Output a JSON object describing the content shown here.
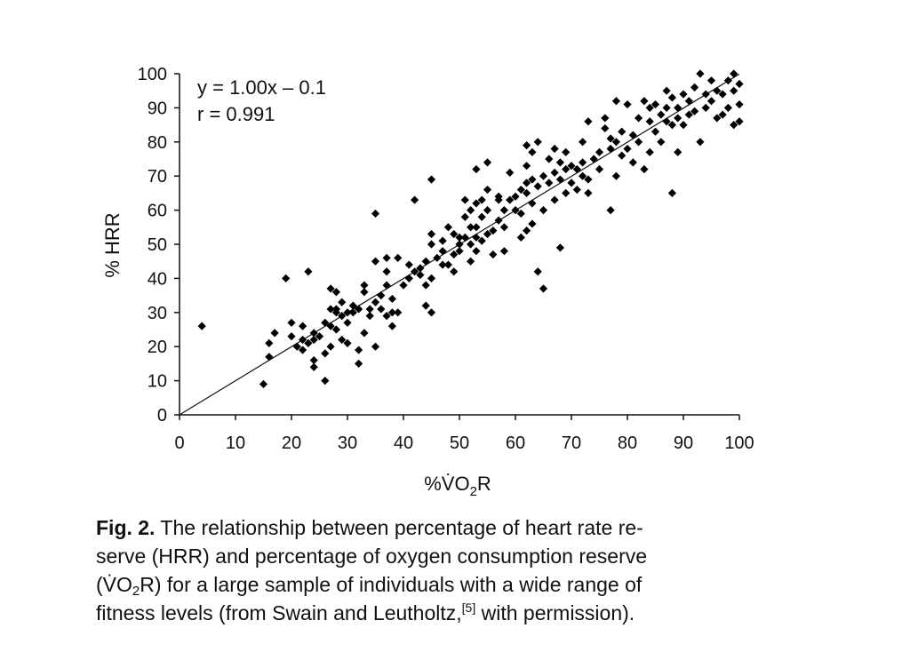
{
  "chart_data": {
    "type": "scatter",
    "xlabel": "%V̇O2R",
    "xlabel_parts": {
      "main": "%V̇O",
      "sub": "2",
      "tail": "R"
    },
    "ylabel": "% HRR",
    "xlim": [
      0,
      100
    ],
    "ylim": [
      0,
      100
    ],
    "x_ticks": [
      0,
      10,
      20,
      30,
      40,
      50,
      60,
      70,
      80,
      90,
      100
    ],
    "y_ticks": [
      0,
      10,
      20,
      30,
      40,
      50,
      60,
      70,
      80,
      90,
      100
    ],
    "grid": false,
    "annotations": {
      "equation": "y = 1.00x – 0.1",
      "correlation": "r = 0.991"
    },
    "regression_line": {
      "slope": 1.0,
      "intercept": -0.1
    },
    "series": [
      {
        "marker": "diamond",
        "color": "#000000",
        "points": [
          [
            4,
            26
          ],
          [
            15,
            9
          ],
          [
            16,
            17
          ],
          [
            16,
            21
          ],
          [
            17,
            24
          ],
          [
            19,
            40
          ],
          [
            20,
            23
          ],
          [
            20,
            27
          ],
          [
            21,
            20
          ],
          [
            22,
            22
          ],
          [
            22,
            26
          ],
          [
            22,
            19
          ],
          [
            23,
            42
          ],
          [
            23,
            21
          ],
          [
            24,
            24
          ],
          [
            24,
            22
          ],
          [
            24,
            16
          ],
          [
            24,
            14
          ],
          [
            25,
            23
          ],
          [
            26,
            27
          ],
          [
            26,
            10
          ],
          [
            26,
            18
          ],
          [
            27,
            20
          ],
          [
            27,
            26
          ],
          [
            27,
            31
          ],
          [
            27,
            37
          ],
          [
            28,
            25
          ],
          [
            28,
            31
          ],
          [
            28,
            36
          ],
          [
            28,
            30
          ],
          [
            29,
            22
          ],
          [
            29,
            29
          ],
          [
            29,
            33
          ],
          [
            30,
            21
          ],
          [
            30,
            27
          ],
          [
            30,
            30
          ],
          [
            31,
            30
          ],
          [
            31,
            32
          ],
          [
            32,
            31
          ],
          [
            32,
            19
          ],
          [
            32,
            15
          ],
          [
            33,
            24
          ],
          [
            33,
            36
          ],
          [
            33,
            38
          ],
          [
            34,
            29
          ],
          [
            34,
            31
          ],
          [
            35,
            20
          ],
          [
            35,
            33
          ],
          [
            35,
            45
          ],
          [
            35,
            59
          ],
          [
            36,
            35
          ],
          [
            36,
            31
          ],
          [
            37,
            29
          ],
          [
            37,
            38
          ],
          [
            37,
            46
          ],
          [
            37,
            42
          ],
          [
            38,
            26
          ],
          [
            38,
            34
          ],
          [
            38,
            30
          ],
          [
            39,
            30
          ],
          [
            39,
            46
          ],
          [
            40,
            38
          ],
          [
            41,
            40
          ],
          [
            41,
            44
          ],
          [
            42,
            42
          ],
          [
            42,
            63
          ],
          [
            43,
            41
          ],
          [
            43,
            43
          ],
          [
            44,
            38
          ],
          [
            44,
            45
          ],
          [
            44,
            32
          ],
          [
            45,
            30
          ],
          [
            45,
            40
          ],
          [
            45,
            50
          ],
          [
            45,
            53
          ],
          [
            45,
            69
          ],
          [
            46,
            46
          ],
          [
            47,
            44
          ],
          [
            47,
            48
          ],
          [
            47,
            51
          ],
          [
            48,
            44
          ],
          [
            48,
            55
          ],
          [
            49,
            42
          ],
          [
            49,
            47
          ],
          [
            49,
            53
          ],
          [
            50,
            48
          ],
          [
            50,
            50
          ],
          [
            50,
            52
          ],
          [
            51,
            52
          ],
          [
            51,
            58
          ],
          [
            51,
            63
          ],
          [
            52,
            45
          ],
          [
            52,
            50
          ],
          [
            52,
            55
          ],
          [
            52,
            60
          ],
          [
            53,
            48
          ],
          [
            53,
            52
          ],
          [
            53,
            55
          ],
          [
            53,
            62
          ],
          [
            53,
            72
          ],
          [
            54,
            51
          ],
          [
            54,
            58
          ],
          [
            54,
            63
          ],
          [
            55,
            53
          ],
          [
            55,
            60
          ],
          [
            55,
            66
          ],
          [
            55,
            74
          ],
          [
            56,
            47
          ],
          [
            56,
            54
          ],
          [
            57,
            57
          ],
          [
            57,
            63
          ],
          [
            57,
            64
          ],
          [
            58,
            48
          ],
          [
            58,
            55
          ],
          [
            58,
            60
          ],
          [
            59,
            63
          ],
          [
            59,
            71
          ],
          [
            60,
            60
          ],
          [
            60,
            64
          ],
          [
            61,
            52
          ],
          [
            61,
            59
          ],
          [
            61,
            66
          ],
          [
            62,
            54
          ],
          [
            62,
            65
          ],
          [
            62,
            68
          ],
          [
            62,
            73
          ],
          [
            62,
            79
          ],
          [
            63,
            56
          ],
          [
            63,
            62
          ],
          [
            63,
            69
          ],
          [
            63,
            77
          ],
          [
            64,
            42
          ],
          [
            64,
            67
          ],
          [
            64,
            80
          ],
          [
            65,
            37
          ],
          [
            65,
            60
          ],
          [
            65,
            70
          ],
          [
            66,
            68
          ],
          [
            66,
            75
          ],
          [
            67,
            63
          ],
          [
            67,
            71
          ],
          [
            67,
            78
          ],
          [
            68,
            49
          ],
          [
            68,
            69
          ],
          [
            68,
            74
          ],
          [
            69,
            65
          ],
          [
            69,
            72
          ],
          [
            69,
            77
          ],
          [
            70,
            68
          ],
          [
            70,
            73
          ],
          [
            71,
            66
          ],
          [
            71,
            72
          ],
          [
            72,
            70
          ],
          [
            72,
            74
          ],
          [
            72,
            80
          ],
          [
            73,
            65
          ],
          [
            73,
            69
          ],
          [
            73,
            86
          ],
          [
            74,
            75
          ],
          [
            75,
            72
          ],
          [
            75,
            77
          ],
          [
            76,
            84
          ],
          [
            76,
            87
          ],
          [
            77,
            60
          ],
          [
            77,
            78
          ],
          [
            77,
            81
          ],
          [
            78,
            70
          ],
          [
            78,
            80
          ],
          [
            78,
            92
          ],
          [
            79,
            76
          ],
          [
            79,
            83
          ],
          [
            80,
            78
          ],
          [
            80,
            91
          ],
          [
            81,
            74
          ],
          [
            81,
            82
          ],
          [
            82,
            80
          ],
          [
            82,
            87
          ],
          [
            83,
            72
          ],
          [
            83,
            92
          ],
          [
            84,
            77
          ],
          [
            84,
            86
          ],
          [
            84,
            90
          ],
          [
            85,
            83
          ],
          [
            85,
            91
          ],
          [
            86,
            88
          ],
          [
            86,
            80
          ],
          [
            87,
            86
          ],
          [
            87,
            90
          ],
          [
            87,
            95
          ],
          [
            88,
            65
          ],
          [
            88,
            85
          ],
          [
            88,
            93
          ],
          [
            89,
            77
          ],
          [
            89,
            87
          ],
          [
            89,
            90
          ],
          [
            90,
            85
          ],
          [
            90,
            94
          ],
          [
            91,
            88
          ],
          [
            91,
            92
          ],
          [
            92,
            89
          ],
          [
            92,
            96
          ],
          [
            93,
            80
          ],
          [
            93,
            100
          ],
          [
            94,
            90
          ],
          [
            94,
            94
          ],
          [
            95,
            92
          ],
          [
            95,
            98
          ],
          [
            96,
            87
          ],
          [
            96,
            95
          ],
          [
            97,
            88
          ],
          [
            97,
            94
          ],
          [
            98,
            90
          ],
          [
            98,
            98
          ],
          [
            99,
            85
          ],
          [
            99,
            95
          ],
          [
            99,
            100
          ],
          [
            100,
            86
          ],
          [
            100,
            91
          ],
          [
            100,
            97
          ]
        ]
      }
    ]
  },
  "caption": {
    "fig_label": "Fig. 2.",
    "line1": " The relationship between percentage of heart rate re-",
    "line2": "serve (HRR) and percentage of oxygen consumption reserve",
    "line3_prefix": "(V̇O",
    "line3_sub": "2",
    "line3_suffix": "R) for a large sample of individuals with a wide range of",
    "line4_prefix": "fitness levels (from Swain and Leutholtz,",
    "line4_sup": "[5]",
    "line4_suffix": " with permission)."
  }
}
